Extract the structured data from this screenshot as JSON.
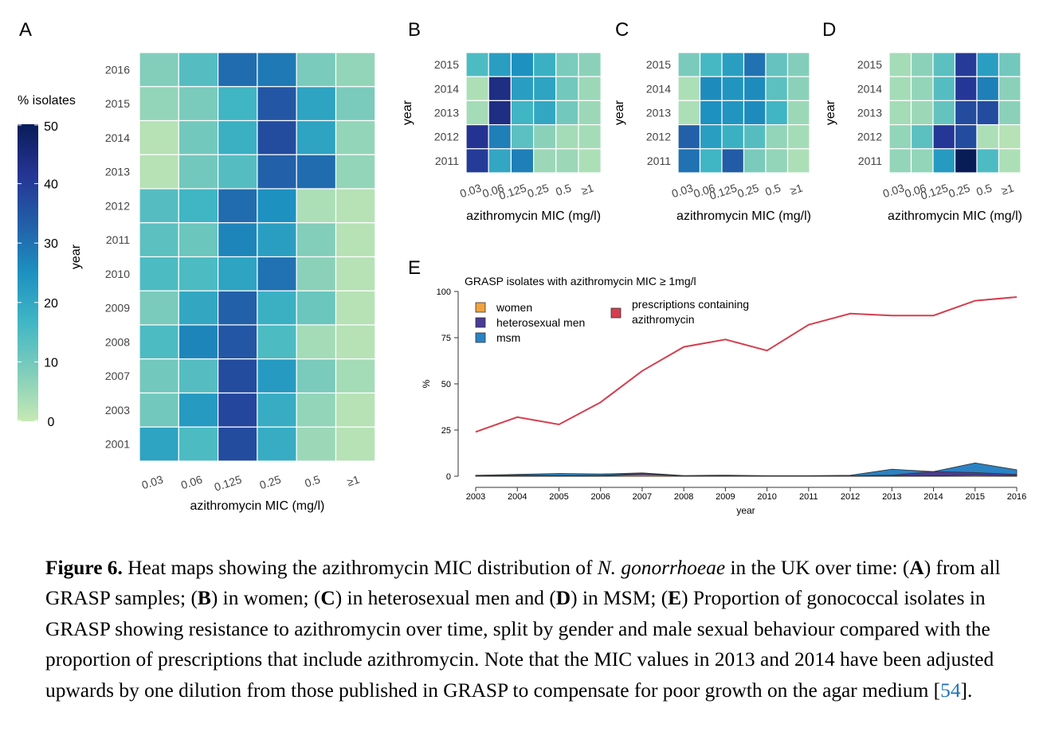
{
  "caption": {
    "figure_label": "Figure 6.",
    "t1": " Heat maps showing the azithromycin MIC distribution of ",
    "species": "N. gonorrhoeae",
    "t2": " in the UK over time: (",
    "pa": "A",
    "t3": ") from all GRASP samples; (",
    "pb": "B",
    "t4": ") in women; (",
    "pc": "C",
    "t5": ") in heterosexual men and (",
    "pd": "D",
    "t6": ") in MSM; (",
    "pe": "E",
    "t7": ") Proportion of gonococcal isolates in GRASP showing resistance to azithromycin over time, split by gender and male sexual behaviour compared with the proportion of prescriptions that include azithromycin. Note that the MIC values in 2013 and 2014 have been adjusted upwards by one dilution from those published in GRASP to compensate for poor growth on the agar medium [",
    "ref": "54",
    "t8": "]."
  },
  "colorbar": {
    "title": "% isolates",
    "ticks": [
      "0",
      "10",
      "20",
      "30",
      "40",
      "50"
    ],
    "range": [
      0,
      50
    ],
    "stops": [
      "#c7e9b4",
      "#7fcdbb",
      "#41b6c4",
      "#1d91c0",
      "#225ea8",
      "#253494",
      "#081d58"
    ]
  },
  "chart_data": [
    {
      "panel": "A",
      "type": "heatmap",
      "xlabel": "azithromycin MIC (mg/l)",
      "ylabel": "year",
      "x": [
        "0.03",
        "0.06",
        "0.125",
        "0.25",
        "0.5",
        "≥1"
      ],
      "y": [
        "2016",
        "2015",
        "2014",
        "2013",
        "2012",
        "2011",
        "2010",
        "2009",
        "2008",
        "2007",
        "2003",
        "2001"
      ],
      "values": [
        [
          8,
          14,
          31,
          29,
          9,
          6
        ],
        [
          6,
          9,
          17,
          35,
          21,
          9
        ],
        [
          2,
          10,
          18,
          37,
          21,
          6
        ],
        [
          2,
          10,
          14,
          33,
          31,
          6
        ],
        [
          14,
          17,
          31,
          25,
          3,
          2
        ],
        [
          13,
          11,
          27,
          22,
          8,
          2
        ],
        [
          15,
          15,
          21,
          30,
          7,
          2
        ],
        [
          9,
          20,
          33,
          18,
          11,
          2
        ],
        [
          15,
          27,
          35,
          15,
          4,
          2
        ],
        [
          10,
          14,
          37,
          23,
          9,
          4
        ],
        [
          10,
          23,
          38,
          19,
          6,
          2
        ],
        [
          21,
          15,
          37,
          19,
          5,
          2
        ]
      ]
    },
    {
      "panel": "B",
      "type": "heatmap",
      "xlabel": "azithromycin MIC (mg/l)",
      "ylabel": "year",
      "x": [
        "0.03",
        "0.06",
        "0.125",
        "0.25",
        "0.5",
        "≥1"
      ],
      "y": [
        "2015",
        "2014",
        "2013",
        "2012",
        "2011"
      ],
      "values": [
        [
          15,
          22,
          25,
          18,
          9,
          7
        ],
        [
          3,
          44,
          22,
          21,
          10,
          5
        ],
        [
          4,
          44,
          17,
          20,
          10,
          5
        ],
        [
          42,
          28,
          13,
          7,
          4,
          4
        ],
        [
          40,
          20,
          28,
          5,
          5,
          3
        ]
      ]
    },
    {
      "panel": "C",
      "type": "heatmap",
      "xlabel": "azithromycin MIC (mg/l)",
      "ylabel": "year",
      "x": [
        "0.03",
        "0.06",
        "0.125",
        "0.25",
        "0.5",
        "≥1"
      ],
      "y": [
        "2015",
        "2014",
        "2013",
        "2012",
        "2011"
      ],
      "values": [
        [
          9,
          16,
          22,
          30,
          12,
          8
        ],
        [
          3,
          26,
          24,
          26,
          13,
          7
        ],
        [
          3,
          25,
          24,
          26,
          17,
          5
        ],
        [
          33,
          22,
          18,
          14,
          6,
          4
        ],
        [
          30,
          17,
          34,
          9,
          6,
          3
        ]
      ]
    },
    {
      "panel": "D",
      "type": "heatmap",
      "xlabel": "azithromycin MIC (mg/l)",
      "ylabel": "year",
      "x": [
        "0.03",
        "0.06",
        "0.125",
        "0.25",
        "0.5",
        "≥1"
      ],
      "y": [
        "2015",
        "2014",
        "2013",
        "2012",
        "2011"
      ],
      "values": [
        [
          4,
          7,
          13,
          40,
          22,
          10
        ],
        [
          4,
          6,
          14,
          41,
          28,
          7
        ],
        [
          4,
          5,
          12,
          37,
          37,
          7
        ],
        [
          6,
          13,
          41,
          37,
          3,
          2
        ],
        [
          6,
          6,
          23,
          51,
          15,
          3
        ]
      ]
    },
    {
      "panel": "E",
      "type": "area",
      "title": "GRASP isolates with azithromycin MIC ≥ 1mg/l",
      "xlabel": "year",
      "ylabel": "%",
      "x": [
        2003,
        2004,
        2005,
        2006,
        2007,
        2008,
        2009,
        2010,
        2011,
        2012,
        2013,
        2014,
        2015,
        2016
      ],
      "ylim": [
        0,
        100
      ],
      "yticks": [
        0,
        25,
        50,
        75,
        100
      ],
      "series": [
        {
          "name": "women",
          "kind": "area",
          "color": "#f1a340",
          "values": [
            0.2,
            0.3,
            0.2,
            0.2,
            0.8,
            0.2,
            0.2,
            0.1,
            0.1,
            0.1,
            0.2,
            0.3,
            0.5,
            0.3
          ]
        },
        {
          "name": "heterosexual men",
          "kind": "area",
          "color": "#4b3c96",
          "values": [
            0.4,
            0.5,
            0.4,
            0.4,
            1.5,
            0.2,
            0.3,
            0.1,
            0.1,
            0.2,
            0.6,
            2.5,
            2.0,
            1.0
          ]
        },
        {
          "name": "msm",
          "kind": "area",
          "color": "#2b83c3",
          "values": [
            0.5,
            1.0,
            1.5,
            1.2,
            1.8,
            0.4,
            0.6,
            0.3,
            0.3,
            0.5,
            3.8,
            2.5,
            7.2,
            3.5
          ]
        },
        {
          "name": "prescriptions containing azithromycin",
          "kind": "line",
          "color": "#d33f4f",
          "values": [
            24,
            32,
            28,
            40,
            57,
            70,
            74,
            68,
            82,
            88,
            87,
            87,
            95,
            97
          ]
        }
      ]
    }
  ]
}
